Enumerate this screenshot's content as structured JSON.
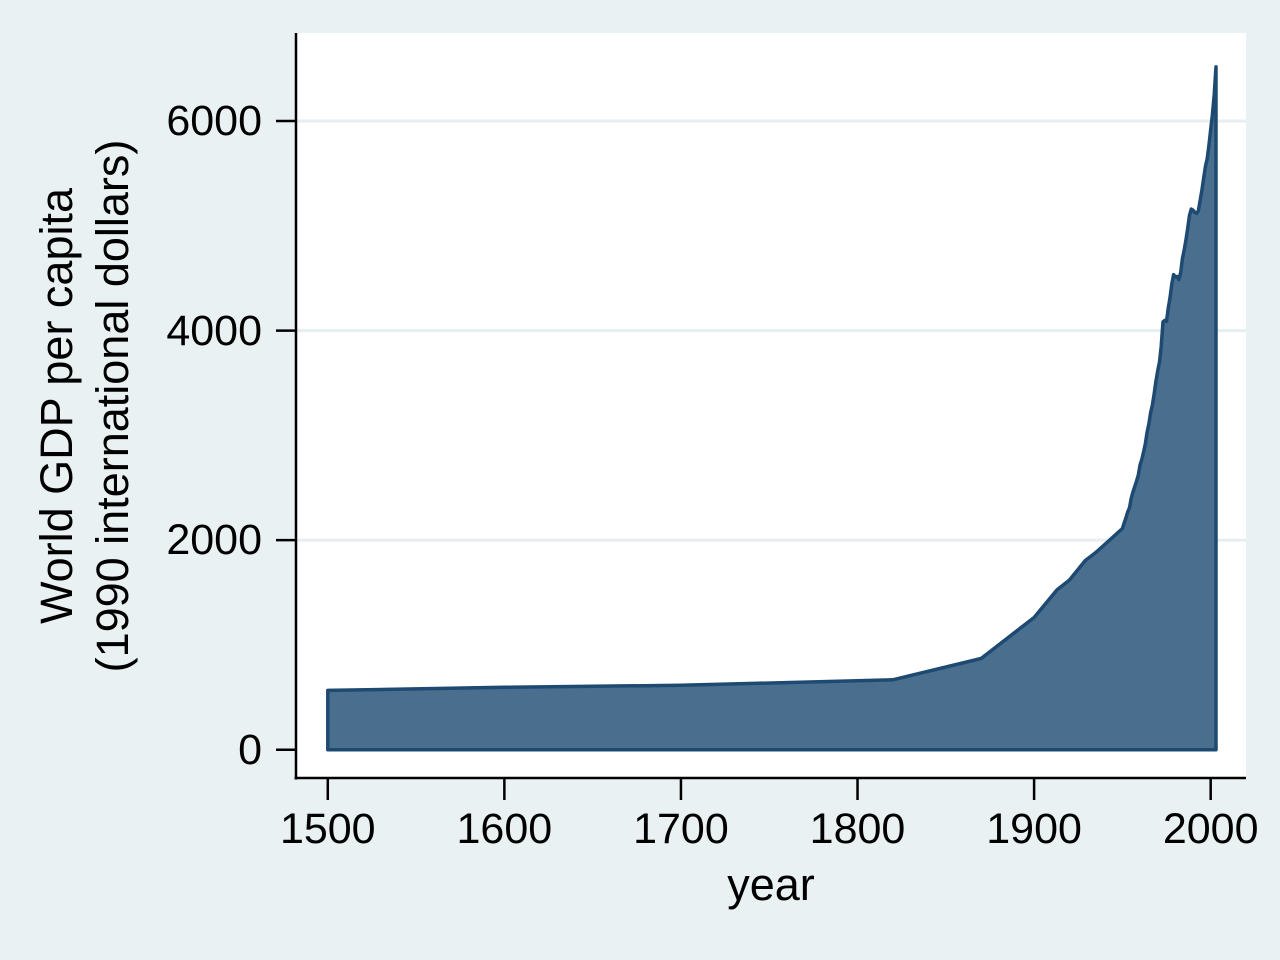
{
  "figure": {
    "background_color": "#e9f1f3",
    "plot_background_color": "#ffffff",
    "grid_color": "#e7eef0",
    "axis_color": "#000000",
    "text_color": "#000000"
  },
  "chart_data": {
    "type": "area",
    "title": "",
    "xlabel": "year",
    "ylabel": "World GDP per capita (1990 international dollars)",
    "ylabel_lines": [
      "World GDP per capita",
      "(1990 international dollars)"
    ],
    "legend": "none",
    "grid": "horizontal",
    "x_ticks": [
      1500,
      1600,
      1700,
      1800,
      1900,
      2000
    ],
    "y_ticks": [
      0,
      2000,
      4000,
      6000
    ],
    "xlim": [
      1482,
      2020
    ],
    "ylim": [
      -270,
      6840
    ],
    "area_fill_color": "#496e8e",
    "area_line_color": "#1e4a72",
    "series": [
      {
        "name": "World GDP per capita (1990 international dollars)",
        "x": [
          1500,
          1600,
          1700,
          1820,
          1870,
          1900,
          1913,
          1920,
          1929,
          1935,
          1940,
          1950,
          1951,
          1952,
          1953,
          1954,
          1955,
          1956,
          1957,
          1958,
          1959,
          1960,
          1961,
          1962,
          1963,
          1964,
          1965,
          1966,
          1967,
          1968,
          1969,
          1970,
          1971,
          1972,
          1973,
          1974,
          1975,
          1976,
          1977,
          1978,
          1979,
          1980,
          1981,
          1982,
          1983,
          1984,
          1985,
          1986,
          1987,
          1988,
          1989,
          1990,
          1991,
          1992,
          1993,
          1994,
          1995,
          1996,
          1997,
          1998,
          1999,
          2000,
          2001,
          2002,
          2003
        ],
        "values": [
          566,
          596,
          615,
          667,
          870,
          1262,
          1526,
          1619,
          1806,
          1883,
          1958,
          2111,
          2166,
          2211,
          2270,
          2310,
          2398,
          2460,
          2513,
          2562,
          2621,
          2720,
          2770,
          2842,
          2918,
          3030,
          3110,
          3215,
          3290,
          3400,
          3515,
          3615,
          3700,
          3850,
          4083,
          4097,
          4088,
          4216,
          4320,
          4445,
          4534,
          4511,
          4517,
          4487,
          4553,
          4687,
          4769,
          4868,
          4976,
          5100,
          5160,
          5149,
          5129,
          5118,
          5141,
          5240,
          5340,
          5450,
          5565,
          5640,
          5765,
          5920,
          6060,
          6250,
          6516
        ]
      }
    ]
  }
}
